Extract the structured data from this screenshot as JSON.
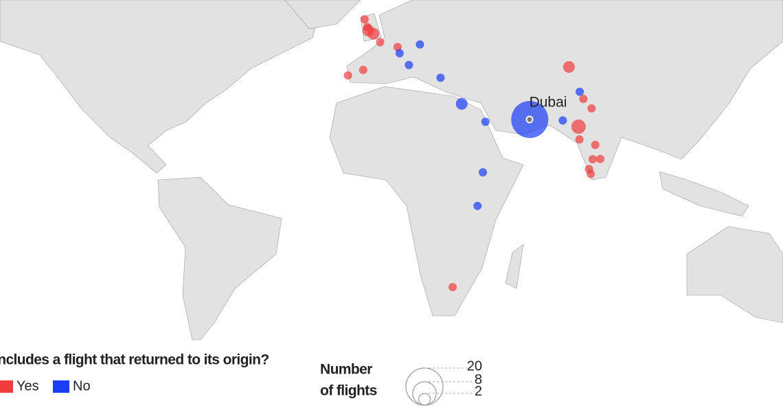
{
  "map": {
    "label": "Dubai",
    "legend": {
      "title": "Includes a flight that returned to its origin?",
      "items": [
        {
          "label": "Yes",
          "color": "#f03c3c",
          "points": [
            {
              "lon": -3.2,
              "lat": 55.9,
              "flights": 1
            },
            {
              "lon": -2.2,
              "lat": 53.5,
              "flights": 1
            },
            {
              "lon": -1.9,
              "lat": 52.5,
              "flights": 2
            },
            {
              "lon": -0.1,
              "lat": 51.5,
              "flights": 2
            },
            {
              "lon": 2.3,
              "lat": 48.9,
              "flights": 1
            },
            {
              "lon": 8.5,
              "lat": 47.4,
              "flights": 1
            },
            {
              "lon": -3.7,
              "lat": 40.4,
              "flights": 1
            },
            {
              "lon": -9.1,
              "lat": 38.7,
              "flights": 1
            },
            {
              "lon": 69.2,
              "lat": 41.3,
              "flights": 2
            },
            {
              "lon": 74.3,
              "lat": 31.5,
              "flights": 1
            },
            {
              "lon": 77.2,
              "lat": 28.6,
              "flights": 1
            },
            {
              "lon": 72.6,
              "lat": 23.0,
              "flights": 3
            },
            {
              "lon": 72.9,
              "lat": 19.1,
              "flights": 1
            },
            {
              "lon": 78.5,
              "lat": 17.4,
              "flights": 1
            },
            {
              "lon": 77.6,
              "lat": 13.0,
              "flights": 1
            },
            {
              "lon": 80.3,
              "lat": 13.1,
              "flights": 1
            },
            {
              "lon": 76.3,
              "lat": 10.0,
              "flights": 1
            },
            {
              "lon": 76.9,
              "lat": 8.5,
              "flights": 1
            },
            {
              "lon": 28.0,
              "lat": -26.2,
              "flights": 1
            }
          ]
        },
        {
          "label": "No",
          "color": "#1a3df5",
          "points": [
            {
              "lon": 55.3,
              "lat": 25.2,
              "flights": 20
            },
            {
              "lon": 9.2,
              "lat": 45.5,
              "flights": 1
            },
            {
              "lon": 16.4,
              "lat": 48.2,
              "flights": 1
            },
            {
              "lon": 12.5,
              "lat": 41.9,
              "flights": 1
            },
            {
              "lon": 23.7,
              "lat": 38.0,
              "flights": 1
            },
            {
              "lon": 31.2,
              "lat": 30.0,
              "flights": 2
            },
            {
              "lon": 39.6,
              "lat": 24.5,
              "flights": 1
            },
            {
              "lon": 38.7,
              "lat": 9.0,
              "flights": 1
            },
            {
              "lon": 36.8,
              "lat": -1.3,
              "flights": 1
            },
            {
              "lon": 67.0,
              "lat": 24.9,
              "flights": 1
            },
            {
              "lon": 73.0,
              "lat": 33.7,
              "flights": 1
            }
          ]
        }
      ]
    },
    "size_legend": {
      "title": [
        "Number",
        "of flights"
      ],
      "values": [
        20,
        8,
        2
      ]
    }
  }
}
